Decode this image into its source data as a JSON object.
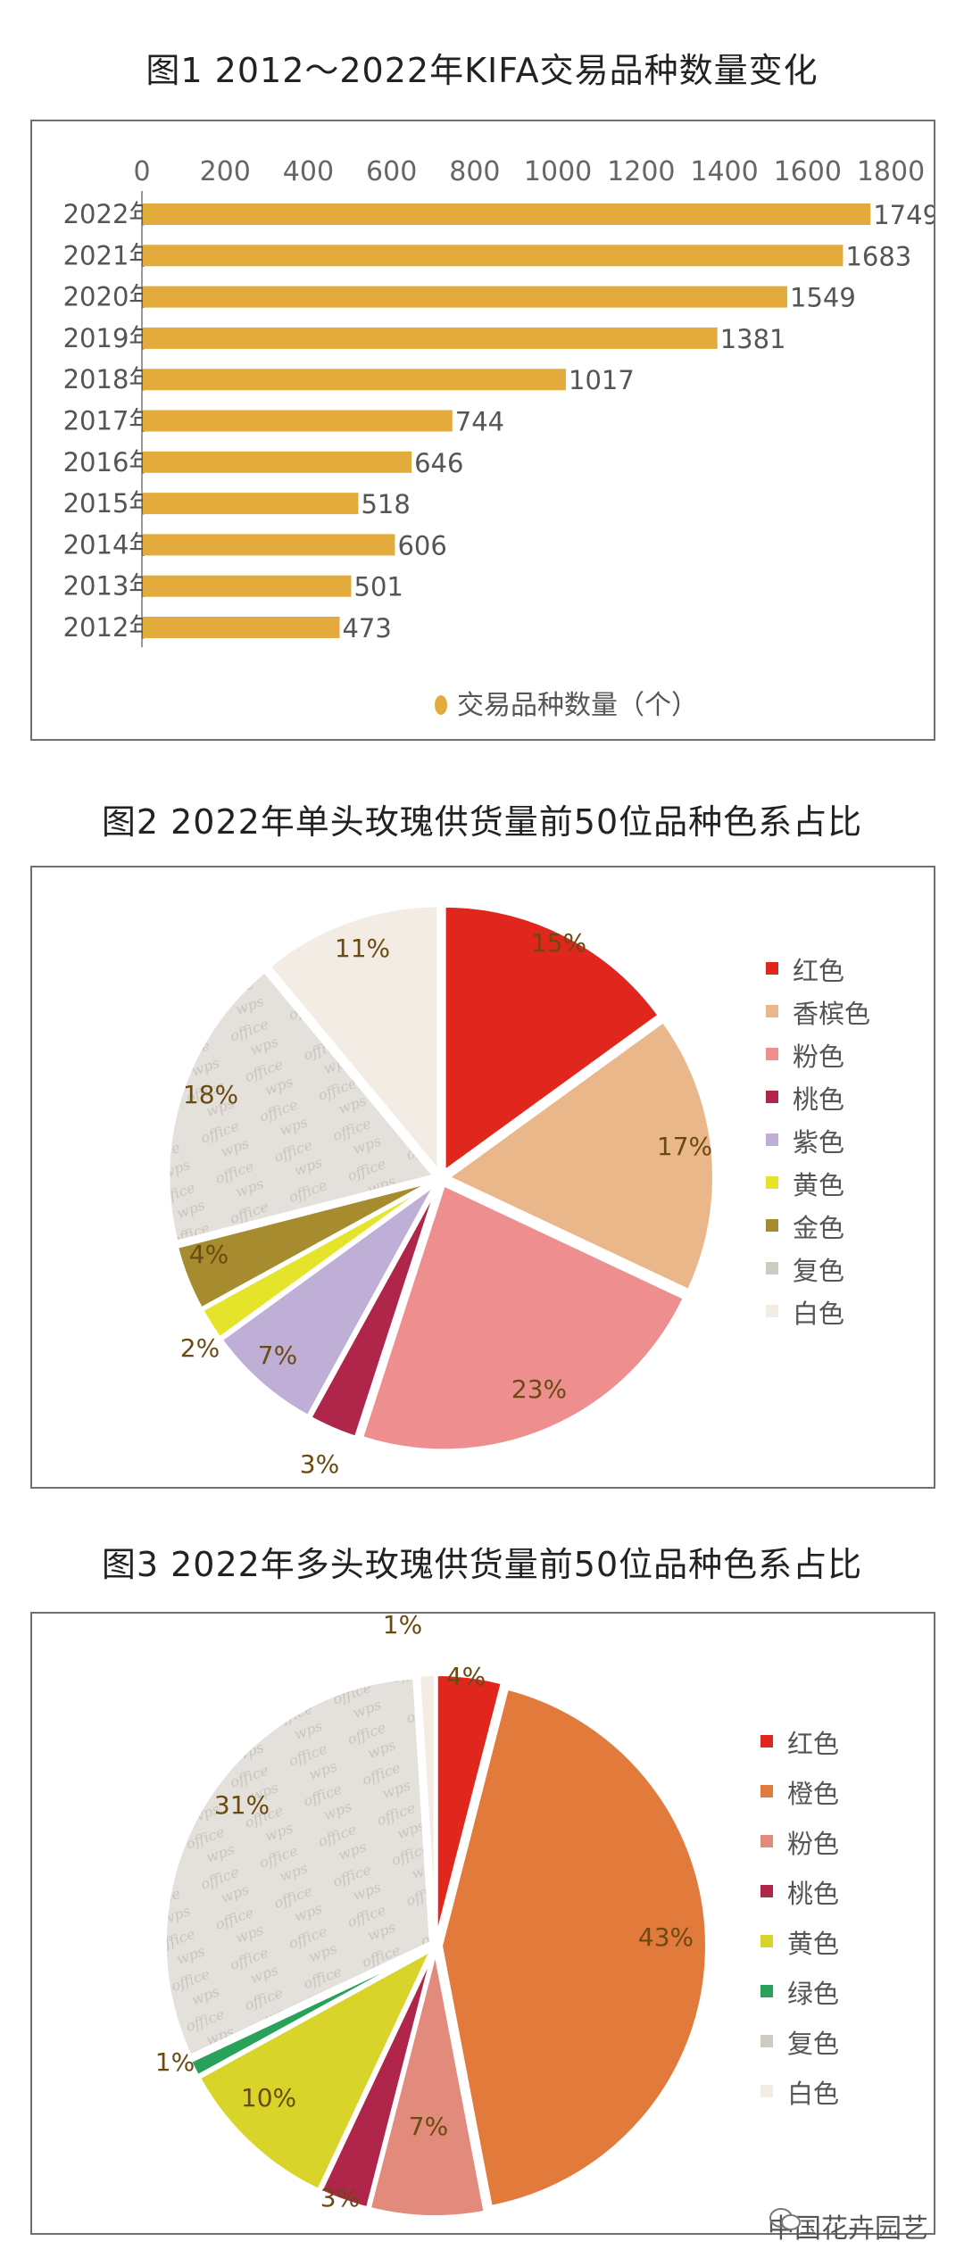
{
  "chart_data": [
    {
      "type": "bar",
      "title": "图1 2012～2022年KIFA交易品种数量变化",
      "categories": [
        "2022年",
        "2021年",
        "2020年",
        "2019年",
        "2018年",
        "2017年",
        "2016年",
        "2015年",
        "2014年",
        "2013年",
        "2012年"
      ],
      "values": [
        1749,
        1683,
        1549,
        1381,
        1017,
        744,
        646,
        518,
        606,
        501,
        473
      ],
      "xlim": [
        0,
        1800
      ],
      "ticks": [
        0,
        200,
        400,
        600,
        800,
        1000,
        1200,
        1400,
        1600,
        1800
      ],
      "legend": "交易品种数量（个）",
      "color": "#E3AB3C"
    },
    {
      "type": "pie",
      "title": "图2 2022年单头玫瑰供货量前50位品种色系占比",
      "slices": [
        {
          "name": "红色",
          "value": 15,
          "label": "15%",
          "color": "#E0261D"
        },
        {
          "name": "香槟色",
          "value": 17,
          "label": "17%",
          "color": "#EAB78B"
        },
        {
          "name": "粉色",
          "value": 23,
          "label": "23%",
          "color": "#EE8E8E"
        },
        {
          "name": "桃色",
          "value": 3,
          "label": "3%",
          "color": "#B0264A"
        },
        {
          "name": "紫色",
          "value": 7,
          "label": "7%",
          "color": "#BFAED6"
        },
        {
          "name": "黄色",
          "value": 2,
          "label": "2%",
          "color": "#E6E42A"
        },
        {
          "name": "金色",
          "value": 4,
          "label": "4%",
          "color": "#A68C2E"
        },
        {
          "name": "复色",
          "value": 18,
          "label": "18%",
          "color": "#E4E1DC"
        },
        {
          "name": "白色",
          "value": 11,
          "label": "11%",
          "color": "#F3ECE4"
        }
      ]
    },
    {
      "type": "pie",
      "title": "图3 2022年多头玫瑰供货量前50位品种色系占比",
      "slices": [
        {
          "name": "红色",
          "value": 4,
          "label": "4%",
          "color": "#E0261D"
        },
        {
          "name": "橙色",
          "value": 43,
          "label": "43%",
          "color": "#E27A3C"
        },
        {
          "name": "粉色",
          "value": 7,
          "label": "7%",
          "color": "#E28A7C"
        },
        {
          "name": "桃色",
          "value": 3,
          "label": "3%",
          "color": "#B0264A"
        },
        {
          "name": "黄色",
          "value": 10,
          "label": "10%",
          "color": "#D9D42A"
        },
        {
          "name": "绿色",
          "value": 1,
          "label": "1%",
          "color": "#28A15A"
        },
        {
          "name": "复色",
          "value": 31,
          "label": "31%",
          "color": "#E4E1DC"
        },
        {
          "name": "白色",
          "value": 1,
          "label": "1%",
          "color": "#F3ECE4"
        }
      ]
    }
  ],
  "watermark": "中国花卉园艺"
}
